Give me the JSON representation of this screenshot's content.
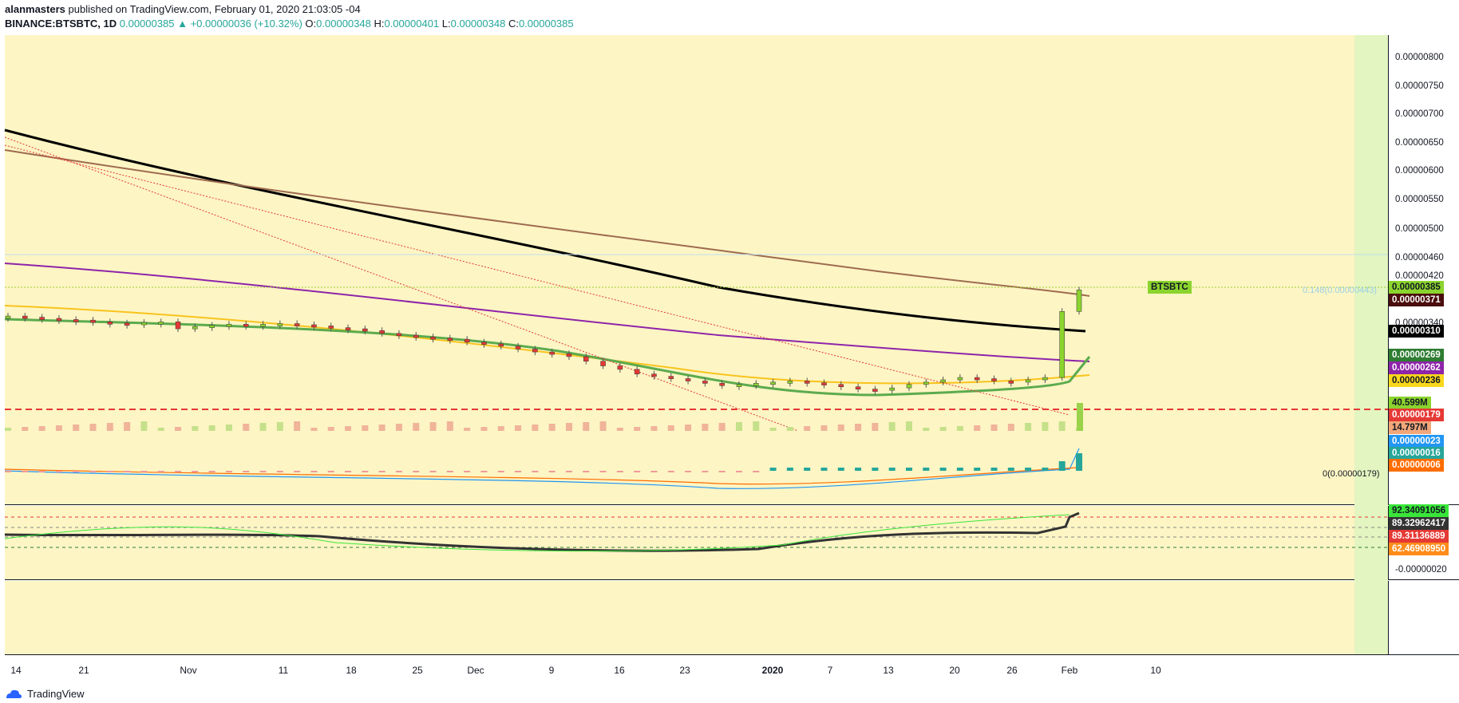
{
  "header": {
    "author": "alanmasters",
    "published_text": "published on TradingView.com, February 01, 2020 21:03:05 -04",
    "symbol": "BINANCE:BTSBTC, 1D",
    "last": "0.00000385",
    "change": "+0.00000036 (+10.32%)",
    "o_label": "O:",
    "o_value": "0.00000348",
    "h_label": "H:",
    "h_value": "0.00000401",
    "l_label": "L:",
    "l_value": "0.00000348",
    "c_label": "C:",
    "c_value": "0.00000385"
  },
  "price_axis_ticks": [
    "0.00000800",
    "0.00000750",
    "0.00000700",
    "0.00000650",
    "0.00000600",
    "0.00000550",
    "0.00000500",
    "0.00000460",
    "0.00000420",
    "0.00000340"
  ],
  "price_labels": [
    {
      "text": "BTSBTC",
      "bg": "#8bd42e",
      "fg": "#131722"
    },
    {
      "text": "0.00000385",
      "bg": "#8bd42e",
      "fg": "#131722"
    },
    {
      "text": "0.00000371",
      "bg": "#4a0d0d",
      "fg": "#ffffff"
    },
    {
      "text": "0.00000310",
      "bg": "#000000",
      "fg": "#ffffff"
    },
    {
      "text": "0.00000269",
      "bg": "#2e7d32",
      "fg": "#ffffff"
    },
    {
      "text": "0.00000262",
      "bg": "#8e24aa",
      "fg": "#ffffff"
    },
    {
      "text": "0.00000236",
      "bg": "#f9d71c",
      "fg": "#131722"
    },
    {
      "text": "40.599M",
      "bg": "#8bd42e",
      "fg": "#131722"
    },
    {
      "text": "0.00000179",
      "bg": "#e53935",
      "fg": "#ffffff"
    },
    {
      "text": "14.797M",
      "bg": "#f2a77a",
      "fg": "#131722"
    }
  ],
  "fib_labels": {
    "upper": "0.148(0.00000443)",
    "lower": "0(0.00000179)"
  },
  "macd_labels": [
    {
      "text": "0.00000023",
      "bg": "#2196f3",
      "fg": "#ffffff"
    },
    {
      "text": "0.00000016",
      "bg": "#26a69a",
      "fg": "#ffffff"
    },
    {
      "text": "0.00000006",
      "bg": "#ff6d00",
      "fg": "#ffffff"
    }
  ],
  "macd_tick": "-0.00000020",
  "stoch_labels": [
    {
      "text": "92.34091056",
      "bg": "#39e639",
      "fg": "#131722"
    },
    {
      "text": "89.32962417",
      "bg": "#333333",
      "fg": "#ffffff"
    },
    {
      "text": "89.31136889",
      "bg": "#e53935",
      "fg": "#ffffff"
    },
    {
      "text": "62.46908950",
      "bg": "#ff8c1a",
      "fg": "#ffffff"
    }
  ],
  "time_axis": [
    "14",
    "21",
    "Nov",
    "11",
    "18",
    "25",
    "Dec",
    "9",
    "16",
    "23",
    "2020",
    "7",
    "13",
    "20",
    "26",
    "Feb",
    "10"
  ],
  "footer": {
    "brand": "TradingView"
  },
  "colors": {
    "pane_bg": "#fdf5c4",
    "bull": "#8bd42e",
    "bear": "#e53935",
    "ma_black": "#000000",
    "ma_brown": "#9e6b4f",
    "ma_purple": "#8e24aa",
    "ma_yellow": "#f9c31c",
    "ma_green": "#5cab4e"
  },
  "chart_data": {
    "type": "candlestick",
    "symbol": "BINANCE:BTSBTC",
    "timeframe": "1D",
    "ylim": [
      1.7e-06,
      8.2e-06
    ],
    "candles_close": [
      3.4e-06,
      3.38e-06,
      3.36e-06,
      3.34e-06,
      3.33e-06,
      3.3e-06,
      3.28e-06,
      3.27e-06,
      3.29e-06,
      3.3e-06,
      3.18e-06,
      3.22e-06,
      3.24e-06,
      3.26e-06,
      3.25e-06,
      3.26e-06,
      3.27e-06,
      3.25e-06,
      3.23e-06,
      3.2e-06,
      3.18e-06,
      3.15e-06,
      3.1e-06,
      3.07e-06,
      3.04e-06,
      3.02e-06,
      3e-06,
      2.95e-06,
      2.92e-06,
      2.88e-06,
      2.83e-06,
      2.78e-06,
      2.75e-06,
      2.7e-06,
      2.62e-06,
      2.54e-06,
      2.48e-06,
      2.4e-06,
      2.36e-06,
      2.32e-06,
      2.28e-06,
      2.24e-06,
      2.2e-06,
      2.22e-06,
      2.24e-06,
      2.26e-06,
      2.28e-06,
      2.25e-06,
      2.22e-06,
      2.18e-06,
      2.14e-06,
      2.12e-06,
      2.16e-06,
      2.22e-06,
      2.26e-06,
      2.3e-06,
      2.34e-06,
      2.32e-06,
      2.28e-06,
      2.26e-06,
      2.3e-06,
      2.34e-06,
      3.48e-06,
      3.85e-06
    ],
    "ma_values_last": {
      "black": 3.1e-06,
      "brown": 3.71e-06,
      "purple": 2.62e-06,
      "yellow": 2.36e-06,
      "green": 2.69e-06
    },
    "fib_levels": [
      {
        "ratio": 0.148,
        "price": 4.43e-06
      },
      {
        "ratio": 0,
        "price": 1.79e-06
      }
    ],
    "volume_last": [
      "40.599M",
      "14.797M"
    ],
    "macd": {
      "macd": 2.3e-07,
      "histogram": 1.6e-07,
      "signal": 6e-08
    },
    "stoch_rsi": [
      92.34091056,
      89.32962417,
      89.31136889,
      62.4690895
    ]
  }
}
